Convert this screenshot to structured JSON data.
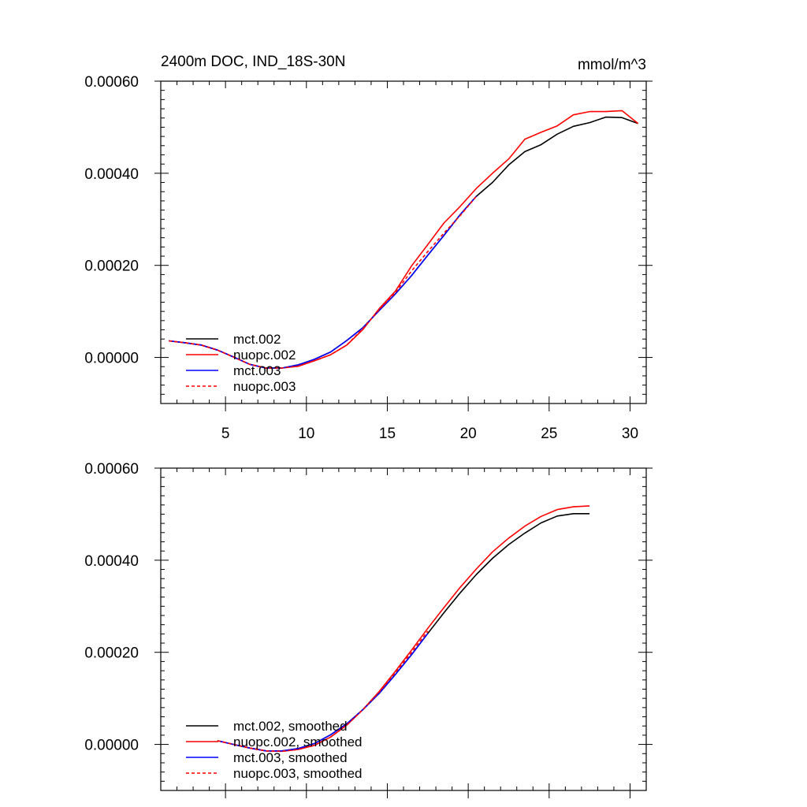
{
  "chart_data": [
    {
      "type": "line",
      "title": "2400m DOC, IND_18S-30N",
      "units": "mmol/m^3",
      "xlim": [
        1,
        31
      ],
      "ylim": [
        -0.0001,
        0.0006
      ],
      "xticks": [
        5,
        10,
        15,
        20,
        25,
        30
      ],
      "xtick_labels": [
        "5",
        "10",
        "15",
        "20",
        "25",
        "30"
      ],
      "yticks": [
        0.0,
        0.0002,
        0.0004,
        0.0006
      ],
      "ytick_labels": [
        "0.00000",
        "0.00020",
        "0.00040",
        "0.00060"
      ],
      "grid": false,
      "legend_position": "lower-left",
      "series": [
        {
          "name": "mct.002",
          "color": "#000000",
          "dash": "solid",
          "x": [
            1.5,
            2.5,
            3.5,
            4.5,
            5.5,
            6.5,
            7.5,
            8.5,
            9.5,
            10.5,
            11.5,
            12.5,
            13.5,
            14.5,
            15.5,
            16.5,
            17.5,
            18.5,
            19.5,
            20.5,
            21.5,
            22.5,
            23.5,
            24.5,
            25.5,
            26.5,
            27.5,
            28.5,
            29.5,
            30.5
          ],
          "y": [
            3.6e-05,
            3.2e-05,
            2.7e-05,
            1.6e-05,
            1e-06,
            -1.5e-05,
            -2.3e-05,
            -2.3e-05,
            -1.6e-05,
            -4e-06,
            1.2e-05,
            3.7e-05,
            6.5e-05,
            0.000102,
            0.000138,
            0.000178,
            0.000222,
            0.000265,
            0.00031,
            0.00035,
            0.00038,
            0.000418,
            0.000447,
            0.000462,
            0.000485,
            0.000502,
            0.00051,
            0.000522,
            0.000521,
            0.000508
          ]
        },
        {
          "name": "nuopc.002",
          "color": "#ff0000",
          "dash": "solid",
          "x": [
            1.5,
            2.5,
            3.5,
            4.5,
            5.5,
            6.5,
            7.5,
            8.5,
            9.5,
            10.5,
            11.5,
            12.5,
            13.5,
            14.5,
            15.5,
            16.5,
            17.5,
            18.5,
            19.5,
            20.5,
            21.5,
            22.5,
            23.5,
            24.5,
            25.5,
            26.5,
            27.5,
            28.5,
            29.5,
            30.5
          ],
          "y": [
            3.6e-05,
            3.2e-05,
            2.7e-05,
            1.6e-05,
            1e-06,
            -1.5e-05,
            -2.3e-05,
            -2.3e-05,
            -1.9e-05,
            -7e-06,
            6e-06,
            2.7e-05,
            6.1e-05,
            0.000106,
            0.000144,
            0.000199,
            0.000245,
            0.000292,
            0.000328,
            0.000367,
            0.0004,
            0.000431,
            0.000474,
            0.000489,
            0.000503,
            0.000527,
            0.000534,
            0.000534,
            0.000536,
            0.000508
          ]
        },
        {
          "name": "mct.003",
          "color": "#0000ff",
          "dash": "solid",
          "x": [
            1.5,
            2.5,
            3.5,
            4.5,
            5.5,
            6.5,
            7.5,
            8.5,
            9.5,
            10.5,
            11.5,
            12.5,
            13.5,
            14.5,
            15.5,
            16.5,
            17.5,
            18.5,
            19.5,
            20.5
          ],
          "y": [
            3.6e-05,
            3.2e-05,
            2.7e-05,
            1.6e-05,
            1e-06,
            -1.5e-05,
            -2.3e-05,
            -2.3e-05,
            -1.6e-05,
            -4e-06,
            1.2e-05,
            3.7e-05,
            6.5e-05,
            0.000102,
            0.000138,
            0.000178,
            0.000222,
            0.000265,
            0.00031,
            0.00035
          ]
        },
        {
          "name": "nuopc.003",
          "color": "#ff0000",
          "dash": "dashed",
          "x": [
            1.5,
            2.5,
            3.5,
            4.5,
            5.5,
            6.5,
            7.5,
            8.5,
            9.5,
            10.5,
            11.5,
            12.5,
            13.5,
            14.5,
            15.5,
            16.5,
            17.5,
            18.5,
            19.5,
            20.5
          ],
          "y": [
            3.6e-05,
            3.2e-05,
            2.7e-05,
            1.6e-05,
            1e-06,
            -1.5e-05,
            -2.3e-05,
            -2.3e-05,
            -1.9e-05,
            -7e-06,
            6e-06,
            2.7e-05,
            6.3e-05,
            0.000104,
            0.000141,
            0.000188,
            0.00023,
            0.00027,
            0.000308,
            0.00035
          ]
        }
      ]
    },
    {
      "type": "line",
      "xlim": [
        1,
        31
      ],
      "ylim": [
        -0.0001,
        0.0006
      ],
      "xticks": [
        5,
        10,
        15,
        20,
        25,
        30
      ],
      "yticks": [
        0.0,
        0.0002,
        0.0004,
        0.0006
      ],
      "ytick_labels": [
        "0.00000",
        "0.00020",
        "0.00040",
        "0.00060"
      ],
      "grid": false,
      "legend_position": "lower-left",
      "series": [
        {
          "name": "mct.002, smoothed",
          "color": "#000000",
          "dash": "solid",
          "x": [
            4.5,
            5.5,
            6.5,
            7.5,
            8.5,
            9.5,
            10.5,
            11.5,
            12.5,
            13.5,
            14.5,
            15.5,
            16.5,
            17.5,
            18.5,
            19.5,
            20.5,
            21.5,
            22.5,
            23.5,
            24.5,
            25.5,
            26.5,
            27.5
          ],
          "y": [
            8e-06,
            0.0,
            -8e-06,
            -1.4e-05,
            -1.4e-05,
            -9e-06,
            2e-06,
            2.1e-05,
            4.5e-05,
            7.6e-05,
            0.000111,
            0.000152,
            0.000195,
            0.000241,
            0.000286,
            0.000329,
            0.000369,
            0.000404,
            0.000434,
            0.000459,
            0.000481,
            0.000496,
            0.000501,
            0.000501
          ]
        },
        {
          "name": "nuopc.002, smoothed",
          "color": "#ff0000",
          "dash": "solid",
          "x": [
            4.5,
            5.5,
            6.5,
            7.5,
            8.5,
            9.5,
            10.5,
            11.5,
            12.5,
            13.5,
            14.5,
            15.5,
            16.5,
            17.5,
            18.5,
            19.5,
            20.5,
            21.5,
            22.5,
            23.5,
            24.5,
            25.5,
            26.5,
            27.5
          ],
          "y": [
            8e-06,
            0.0,
            -8e-06,
            -1.4e-05,
            -1.5e-05,
            -1.1e-05,
            -2e-06,
            1.6e-05,
            4.2e-05,
            7.6e-05,
            0.000115,
            0.000159,
            0.000205,
            0.000252,
            0.000297,
            0.000341,
            0.000381,
            0.000418,
            0.000448,
            0.000474,
            0.000495,
            0.00051,
            0.000516,
            0.000518
          ]
        },
        {
          "name": "mct.003, smoothed",
          "color": "#0000ff",
          "dash": "solid",
          "x": [
            4.5,
            5.5,
            6.5,
            7.5,
            8.5,
            9.5,
            10.5,
            11.5,
            12.5,
            13.5,
            14.5,
            15.5,
            16.5,
            17.5
          ],
          "y": [
            8e-06,
            0.0,
            -8e-06,
            -1.4e-05,
            -1.4e-05,
            -9e-06,
            2e-06,
            2.1e-05,
            4.5e-05,
            7.6e-05,
            0.000111,
            0.000152,
            0.000195,
            0.000241
          ]
        },
        {
          "name": "nuopc.003, smoothed",
          "color": "#ff0000",
          "dash": "dashed",
          "x": [
            4.5,
            5.5,
            6.5,
            7.5,
            8.5,
            9.5,
            10.5,
            11.5,
            12.5,
            13.5,
            14.5,
            15.5,
            16.5,
            17.5
          ],
          "y": [
            8e-06,
            0.0,
            -8e-06,
            -1.4e-05,
            -1.5e-05,
            -1.1e-05,
            -2e-06,
            1.6e-05,
            4.2e-05,
            7.6e-05,
            0.000114,
            0.000156,
            0.0002,
            0.000246
          ]
        }
      ]
    }
  ]
}
